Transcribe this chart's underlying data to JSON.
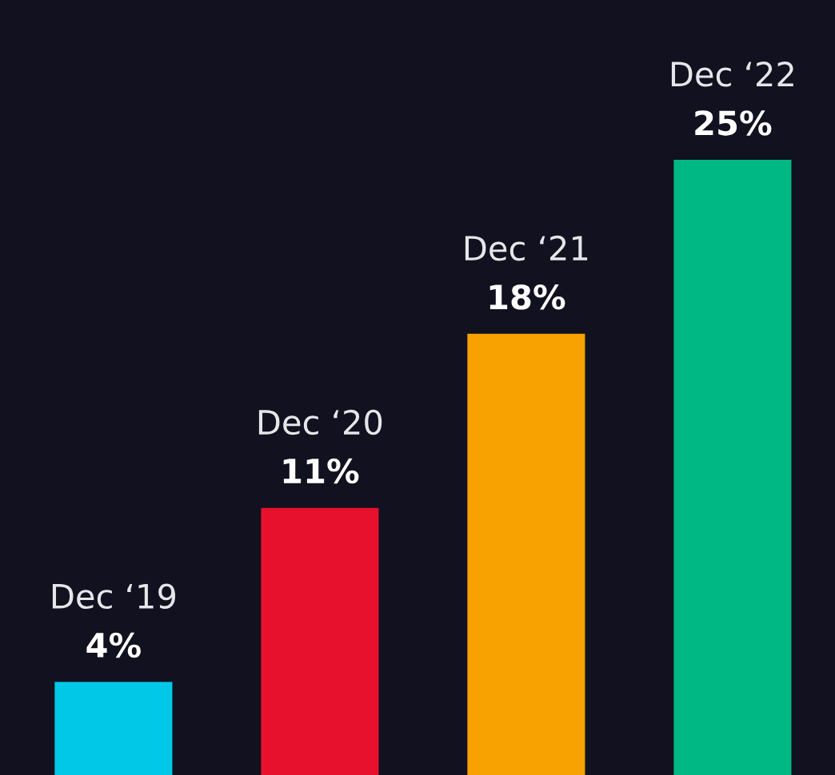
{
  "chart_data": {
    "type": "bar",
    "categories": [
      "Dec ‘19",
      "Dec ‘20",
      "Dec ‘21",
      "Dec ‘22"
    ],
    "values": [
      4,
      11,
      18,
      25
    ],
    "colors": [
      "#00c8e6",
      "#e8112d",
      "#f7a200",
      "#00b884"
    ],
    "value_labels": [
      "4%",
      "11%",
      "18%",
      "25%"
    ]
  }
}
